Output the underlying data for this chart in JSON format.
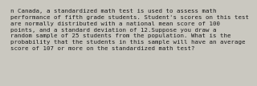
{
  "text": "n Canada, a standardized math test is used to assess math\nperformance of fifth grade students. Student's scores on this test\nare normally distributed with a national mean score of 100\npoints, and a standard deviation of 12.Suppose you draw a\nrandom sample of 25 students from the population. What is the\nprobability that the students in this sample will have an average\nscore of 107 or more on the standardized math test?",
  "background_color": "#cac8c0",
  "text_color": "#1a1a1a",
  "font_size": 5.3,
  "font_family": "DejaVu Sans Mono"
}
